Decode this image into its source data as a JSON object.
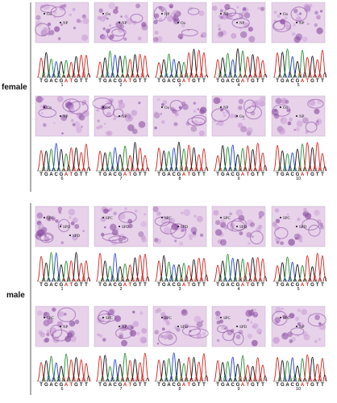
{
  "figure": {
    "group_labels": {
      "female": "female",
      "male": "male"
    },
    "bases": [
      "T",
      "G",
      "A",
      "C",
      "G",
      "A",
      "T",
      "G",
      "T",
      "T"
    ],
    "highlight_index": [
      5,
      6
    ],
    "colors": {
      "A": "#1f8a2a",
      "C": "#1e3fd0",
      "G": "#111111",
      "T": "#d0201a",
      "tissue_bg": "#e7d2ea",
      "tissue_dark": "#8a4da0",
      "tissue_mid": "#c79ad3",
      "axis_line": "#333333"
    },
    "rows": [
      {
        "group": "female",
        "samples": [
          {
            "number": "1",
            "labels": [
              "Oo",
              "NP"
            ]
          },
          {
            "number": "2",
            "labels": [
              "Oo",
              "NP"
            ]
          },
          {
            "number": "3",
            "labels": [
              "NP",
              "Oo"
            ]
          },
          {
            "number": "4",
            "labels": [
              "NP",
              "NP"
            ]
          },
          {
            "number": "5",
            "labels": [
              "Oo",
              "NP"
            ]
          }
        ]
      },
      {
        "group": "female",
        "samples": [
          {
            "number": "6",
            "labels": [
              "Oo",
              "NP"
            ]
          },
          {
            "number": "7",
            "labels": [
              "Oo",
              "NP"
            ]
          },
          {
            "number": "8",
            "labels": [
              "Oo"
            ]
          },
          {
            "number": "9",
            "labels": [
              "NP",
              "Oo"
            ]
          },
          {
            "number": "10",
            "labels": [
              "Oo",
              "NP"
            ]
          }
        ]
      },
      {
        "group": "male",
        "samples": [
          {
            "number": "1",
            "labels": [
              "SPC",
              "SPD",
              "SPD"
            ]
          },
          {
            "number": "2",
            "labels": [
              "SPC",
              "SPD"
            ]
          },
          {
            "number": "3",
            "labels": [
              "SPC",
              "SPD"
            ]
          },
          {
            "number": "4",
            "labels": [
              "SPC",
              "SPD"
            ]
          },
          {
            "number": "5",
            "labels": [
              "SPC",
              "SPD"
            ]
          }
        ]
      },
      {
        "group": "male",
        "samples": [
          {
            "number": "6",
            "labels": [
              "SPC",
              "NP"
            ]
          },
          {
            "number": "7",
            "labels": [
              "SPC",
              "NP"
            ]
          },
          {
            "number": "8",
            "labels": [
              "SPC",
              "SPD"
            ]
          },
          {
            "number": "9",
            "labels": [
              "SPC",
              "SPD"
            ]
          },
          {
            "number": "10",
            "labels": [
              "SPC",
              "NP"
            ]
          }
        ]
      }
    ]
  }
}
